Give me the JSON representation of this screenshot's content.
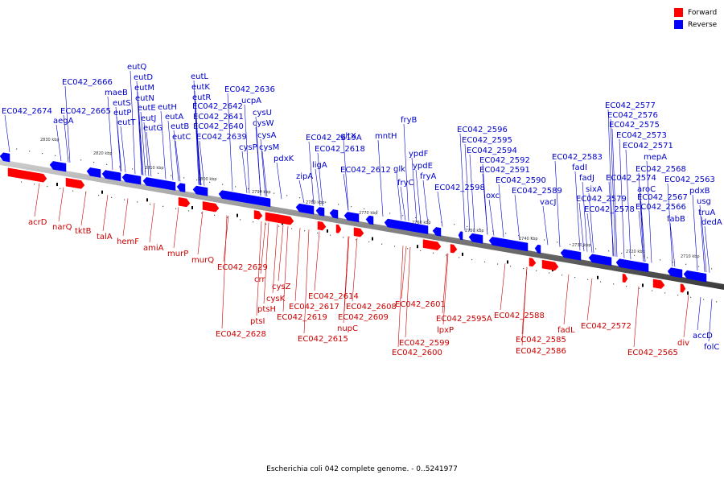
{
  "caption": "Escherichia coli 042 complete genome. - 0..5241977",
  "legend": {
    "forward_label": "Forward",
    "reverse_label": "Reverse",
    "forward_color": "#ff0000",
    "reverse_color": "#0000ff"
  },
  "ticks": [
    "2830 kbp",
    "2820 kbp",
    "2810 kbp",
    "2800 kbp",
    "2790 kbp",
    "2780 kbp",
    "2770 kbp",
    "2760 kbp",
    "2750 kbp",
    "2740 kbp",
    "2730 kbp",
    "2720 kbp",
    "2710 kbp"
  ],
  "reverse_genes": [
    "EC042_2674",
    "EC042_2666",
    "aegA",
    "EC042_2665",
    "maeB",
    "eutS",
    "eutP",
    "eutT",
    "eutQ",
    "eutD",
    "eutM",
    "eutN",
    "eutE",
    "eutJ",
    "eutG",
    "eutH",
    "eutA",
    "eutB",
    "eutC",
    "eutL",
    "eutK",
    "eutR",
    "EC042_2642",
    "EC042_2641",
    "EC042_2640",
    "EC042_2639",
    "EC042_2636",
    "ucpA",
    "cysU",
    "cysW",
    "cysA",
    "cysM",
    "cysP",
    "pdxK",
    "zipA",
    "ligA",
    "EC042_2619A",
    "EC042_2618",
    "gltX",
    "EC042_2612",
    "mntH",
    "glk",
    "fryB",
    "ypdF",
    "fryC",
    "ypdE",
    "fryA",
    "EC042_2598",
    "EC042_2596",
    "EC042_2595",
    "EC042_2594",
    "EC042_2592",
    "EC042_2591",
    "oxc",
    "EC042_2590",
    "EC042_2589",
    "vacJ",
    "EC042_2583",
    "fadI",
    "fadJ",
    "sixA",
    "EC042_2579",
    "EC042_2578",
    "EC042_2577",
    "EC042_2576",
    "EC042_2575",
    "EC042_2573",
    "EC042_2571",
    "EC042_2574",
    "mepA",
    "EC042_2568",
    "aroC",
    "EC042_2567",
    "EC042_2566",
    "EC042_2563",
    "pdxB",
    "usg",
    "truA",
    "fabB",
    "dedA",
    "accD",
    "folC"
  ],
  "forward_genes": [
    "acrD",
    "narQ",
    "tktB",
    "talA",
    "hemF",
    "amiA",
    "murP",
    "murQ",
    "EC042_2629",
    "crr",
    "cysZ",
    "cysK",
    "ptsH",
    "ptsI",
    "EC042_2628",
    "EC042_2614",
    "EC042_2617",
    "EC042_2619",
    "EC042_2615",
    "EC042_2608",
    "EC042_2609",
    "nupC",
    "EC042_2601",
    "EC042_2599",
    "EC042_2600",
    "EC042_2595A",
    "lpxP",
    "EC042_2588",
    "EC042_2585",
    "EC042_2586",
    "fadL",
    "EC042_2572",
    "EC042_2565",
    "div"
  ]
}
